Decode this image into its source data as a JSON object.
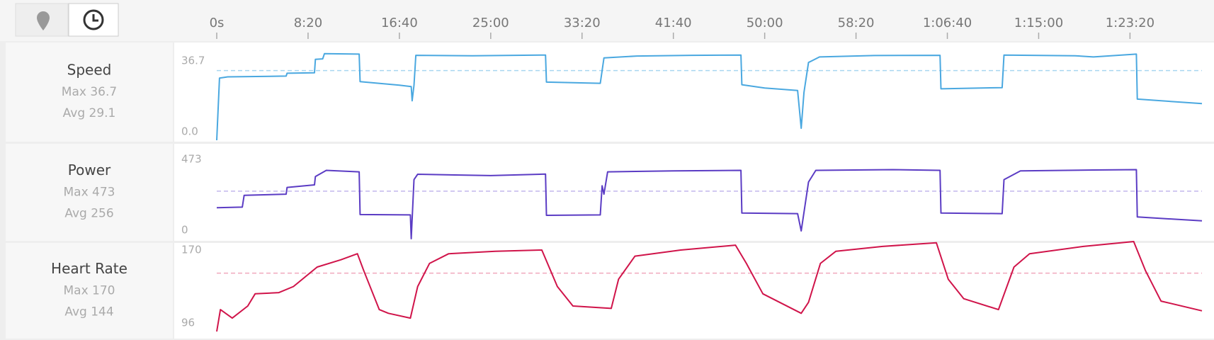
{
  "chart_data": [
    {
      "type": "line",
      "title": "Speed",
      "max": {
        "value": 36.7,
        "label": "Max 36.7"
      },
      "avg": {
        "value": 29.1,
        "label": "Avg 29.1"
      },
      "color": "#4aa8e0",
      "avg_color": "#a9d6f0",
      "xlim": [
        0,
        5394
      ],
      "ylim": [
        0,
        36.7
      ],
      "yticks": [
        {
          "value": 0,
          "label": "0.0"
        },
        36.7
      ],
      "xticks": [
        {
          "value": 0,
          "label": "0s"
        },
        {
          "value": 500,
          "label": "8:20"
        },
        {
          "value": 1000,
          "label": "16:40"
        },
        {
          "value": 1500,
          "label": "25:00"
        },
        {
          "value": 2000,
          "label": "33:20"
        },
        {
          "value": 2500,
          "label": "41:40"
        },
        {
          "value": 3000,
          "label": "50:00"
        },
        {
          "value": 3500,
          "label": "58:20"
        },
        {
          "value": 4000,
          "label": "1:06:40"
        },
        {
          "value": 4500,
          "label": "1:15:00"
        },
        {
          "value": 5000,
          "label": "1:23:20"
        }
      ],
      "x": [
        0,
        15,
        60,
        380,
        385,
        535,
        540,
        580,
        590,
        780,
        785,
        1000,
        1065,
        1070,
        1080,
        1090,
        1400,
        1800,
        1805,
        2100,
        2120,
        2300,
        2600,
        2870,
        2875,
        3000,
        3180,
        3200,
        3215,
        3240,
        3300,
        3600,
        3960,
        3965,
        4300,
        4310,
        4700,
        4800,
        5035,
        5040,
        5394
      ],
      "values": [
        0,
        26,
        26.5,
        26.8,
        28,
        28.2,
        33.8,
        34,
        36.2,
        36,
        24.5,
        23,
        22.4,
        16.5,
        23,
        35.5,
        35.3,
        35.6,
        24.3,
        23.8,
        34.4,
        35.2,
        35.5,
        35.6,
        23.2,
        21.8,
        20.8,
        5,
        20,
        32.5,
        34.8,
        35.4,
        35.5,
        21.5,
        22,
        35.6,
        35.3,
        34.8,
        36,
        17.2,
        15.3
      ]
    },
    {
      "type": "line",
      "title": "Power",
      "max": {
        "value": 473,
        "label": "Max 473"
      },
      "avg": {
        "value": 256,
        "label": "Avg 256"
      },
      "color": "#5b3cc4",
      "avg_color": "#c2b6ec",
      "xlim": [
        0,
        5394
      ],
      "ylim": [
        0,
        473
      ],
      "yticks": [
        0,
        473
      ],
      "x": [
        0,
        140,
        150,
        380,
        385,
        535,
        540,
        600,
        780,
        785,
        1060,
        1065,
        1080,
        1100,
        1500,
        1800,
        1805,
        2100,
        2110,
        2120,
        2140,
        2500,
        2870,
        2875,
        3180,
        3200,
        3240,
        3280,
        3700,
        3960,
        3965,
        4300,
        4310,
        4400,
        4800,
        5035,
        5040,
        5394
      ],
      "values": [
        167,
        170,
        234,
        240,
        276,
        290,
        335,
        368,
        360,
        130,
        128,
        0,
        318,
        347,
        340,
        348,
        126,
        128,
        285,
        240,
        360,
        365,
        368,
        138,
        135,
        42,
        305,
        368,
        372,
        368,
        138,
        135,
        318,
        365,
        370,
        372,
        117,
        96
      ]
    },
    {
      "type": "line",
      "title": "Heart Rate",
      "max": {
        "value": 170,
        "label": "Max 170"
      },
      "avg": {
        "value": 144,
        "label": "Avg 144"
      },
      "color": "#d0144a",
      "avg_color": "#f0a8bc",
      "xlim": [
        0,
        5394
      ],
      "ylim": [
        96,
        170
      ],
      "yticks": [
        96,
        170
      ],
      "x": [
        0,
        20,
        85,
        170,
        210,
        340,
        420,
        550,
        680,
        770,
        805,
        890,
        940,
        1060,
        1100,
        1165,
        1270,
        1525,
        1780,
        1865,
        1950,
        2160,
        2200,
        2290,
        2540,
        2840,
        2900,
        2990,
        3200,
        3240,
        3305,
        3390,
        3645,
        3940,
        4005,
        4090,
        4280,
        4365,
        4450,
        4745,
        5020,
        5085,
        5170,
        5394
      ],
      "values": [
        96,
        114,
        107,
        117,
        127,
        128,
        133,
        149,
        155,
        160,
        146,
        114,
        111,
        107,
        133,
        152,
        160,
        162,
        163,
        133,
        117,
        115,
        139,
        158,
        163,
        167,
        152,
        127,
        111,
        120,
        152,
        162,
        166,
        169,
        139,
        123,
        114,
        149,
        160,
        166,
        170,
        146,
        121,
        113
      ]
    }
  ]
}
